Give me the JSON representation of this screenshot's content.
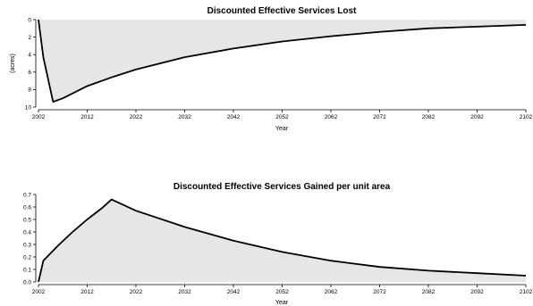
{
  "chart_data": [
    {
      "type": "area",
      "title": "Discounted Effective Services Lost",
      "xlabel": "Year",
      "ylabel": "(acres)",
      "xlim": [
        2002,
        2102
      ],
      "ylim": [
        0,
        10
      ],
      "y_inverted": true,
      "xticks": [
        "2002",
        "2012",
        "2022",
        "2032",
        "2042",
        "2052",
        "2062",
        "2072",
        "2082",
        "2092",
        "2102"
      ],
      "yticks": [
        "0",
        "2",
        "4",
        "6",
        "8",
        "10"
      ],
      "fill_color": "#e6e6e6",
      "line_color": "#000000",
      "grid": false,
      "series": [
        {
          "x": [
            2002,
            2003,
            2005,
            2007,
            2012,
            2017,
            2022,
            2032,
            2042,
            2052,
            2062,
            2072,
            2082,
            2092,
            2102
          ],
          "y": [
            0,
            4.3,
            9.4,
            9.0,
            7.6,
            6.6,
            5.7,
            4.3,
            3.3,
            2.5,
            1.9,
            1.4,
            1.0,
            0.8,
            0.6
          ]
        }
      ]
    },
    {
      "type": "area",
      "title": "Discounted Effective Services Gained per unit area",
      "xlabel": "Year",
      "ylabel": "",
      "xlim": [
        2002,
        2102
      ],
      "ylim": [
        0,
        0.7
      ],
      "xticks": [
        "2002",
        "2012",
        "2022",
        "2032",
        "2042",
        "2052",
        "2062",
        "2072",
        "2082",
        "2092",
        "2102"
      ],
      "yticks": [
        "0.0",
        "0.1",
        "0.2",
        "0.3",
        "0.4",
        "0.5",
        "0.6",
        "0.7"
      ],
      "fill_color": "#e6e6e6",
      "line_color": "#000000",
      "grid": false,
      "series": [
        {
          "x": [
            2002,
            2003,
            2006,
            2009,
            2012,
            2015,
            2017,
            2022,
            2032,
            2042,
            2052,
            2062,
            2072,
            2082,
            2092,
            2102
          ],
          "y": [
            0,
            0.17,
            0.29,
            0.4,
            0.5,
            0.59,
            0.66,
            0.57,
            0.44,
            0.33,
            0.24,
            0.17,
            0.12,
            0.09,
            0.07,
            0.05
          ]
        }
      ]
    }
  ]
}
